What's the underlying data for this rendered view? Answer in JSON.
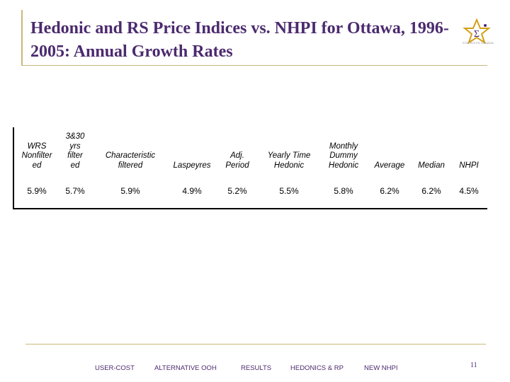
{
  "slide": {
    "title": "Hedonic and RS Price Indices vs. NHPI for Ottawa, 1996-2005: Annual Growth Rates",
    "logo_caption": "STATISTICS CANADA",
    "page_number": "11"
  },
  "table": {
    "columns": [
      {
        "header": "WRS\nNonfilter\ned",
        "value": "5.9%"
      },
      {
        "header": "3&30\nyrs\nfilter\ned",
        "value": "5.7%"
      },
      {
        "header": "Characteristic\nfiltered",
        "value": "5.9%"
      },
      {
        "header": "Laspeyres",
        "value": "4.9%"
      },
      {
        "header": "Adj.\nPeriod",
        "value": "5.2%"
      },
      {
        "header": "Yearly Time\nHedonic",
        "value": "5.5%"
      },
      {
        "header": "Monthly\nDummy\nHedonic",
        "value": "5.8%"
      },
      {
        "header": "Average",
        "value": "6.2%"
      },
      {
        "header": "Median",
        "value": "6.2%"
      },
      {
        "header": "NHPI",
        "value": "4.5%"
      }
    ]
  },
  "nav": {
    "items": [
      "USER-COST",
      "ALTERNATIVE OOH",
      "RESULTS",
      "HEDONICS & RP",
      "NEW NHPI"
    ]
  },
  "colors": {
    "title": "#4b2a6e",
    "rule": "#c9b87a",
    "logo_gold": "#d4a017"
  }
}
